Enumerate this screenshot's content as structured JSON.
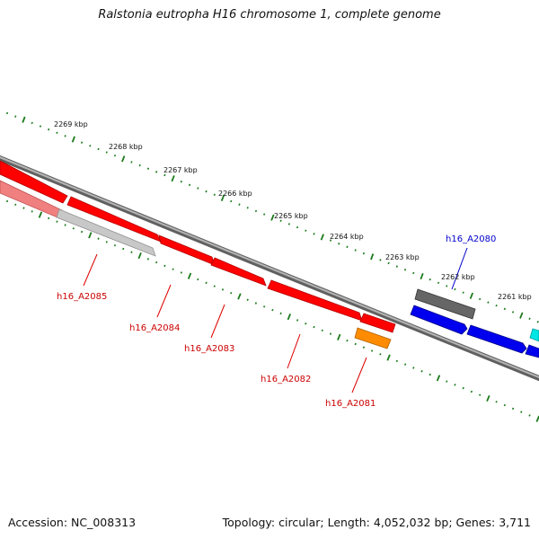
{
  "title": "Ralstonia eutropha H16 chromosome 1, complete genome",
  "footer": {
    "accession": "Accession: NC_008313",
    "summary": "Topology: circular; Length: 4,052,032 bp; Genes: 3,711"
  },
  "colors": {
    "tick_green": "#1a7a1a",
    "backbone": "#808080",
    "gene_red": "#ff0000",
    "gene_pink": "#f08080",
    "gene_light_grey": "#c8c8c8",
    "gene_dark_grey": "#666666",
    "gene_blue": "#0000ee",
    "gene_orange": "#ff8c00",
    "gene_cyan": "#00e5e5",
    "label_red": "#cc0000",
    "label_blue": "#0000cc"
  },
  "scale_labels": [
    "2269 kbp",
    "2268 kbp",
    "2267 kbp",
    "2266 kbp",
    "2265 kbp",
    "2264 kbp",
    "2263 kbp",
    "2262 kbp",
    "2261 kbp"
  ],
  "gene_labels": [
    {
      "text": "h16_A2085",
      "color": "red"
    },
    {
      "text": "h16_A2084",
      "color": "red"
    },
    {
      "text": "h16_A2083",
      "color": "red"
    },
    {
      "text": "h16_A2082",
      "color": "red"
    },
    {
      "text": "h16_A2081",
      "color": "red"
    },
    {
      "text": "h16_A2080",
      "color": "blue"
    }
  ]
}
